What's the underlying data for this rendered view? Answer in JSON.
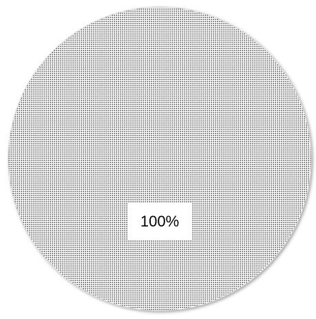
{
  "chart_data": {
    "type": "pie",
    "categories": [
      null
    ],
    "values": [
      100
    ],
    "value_labels": [
      "100%"
    ],
    "color": "#000000"
  }
}
